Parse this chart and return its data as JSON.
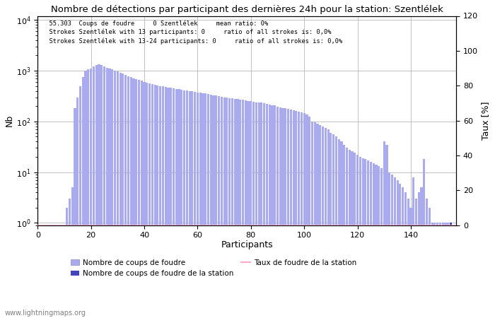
{
  "title": "Nombre de détections par participant des dernières 24h pour la station: Szentlélek",
  "xlabel": "Participants",
  "ylabel_left": "Nb",
  "ylabel_right": "Taux [%]",
  "annotation_lines": [
    "  55.303  Coups de foudre     0 Szentlélek     mean ratio: 0%",
    "  Strokes Szentlélek with 13 participants: 0     ratio of all strokes is: 0,0%",
    "  Strokes Szentlélek with 13-24 participants: 0     ratio of all strokes is: 0,0%"
  ],
  "bar_color": "#aaaaee",
  "bar_color_station": "#4444bb",
  "line_color": "#ffaacc",
  "legend_entries": [
    "Nombre de coups de foudre",
    "Nombre de coups de foudre de la station",
    "Taux de foudre de la station"
  ],
  "watermark": "www.lightningmaps.org",
  "ylim_right": [
    0,
    120
  ],
  "xlim": [
    0,
    157
  ],
  "xticks": [
    0,
    20,
    40,
    60,
    80,
    100,
    120,
    140
  ],
  "yticks_right": [
    0,
    20,
    40,
    60,
    80,
    100,
    120
  ],
  "values": [
    0,
    0,
    0,
    0,
    0,
    0,
    0,
    0,
    0,
    0,
    2,
    3,
    5,
    180,
    300,
    500,
    750,
    1000,
    1050,
    1100,
    1200,
    1300,
    1350,
    1280,
    1200,
    1150,
    1100,
    1050,
    1000,
    980,
    920,
    870,
    820,
    780,
    740,
    700,
    680,
    650,
    630,
    600,
    580,
    560,
    540,
    520,
    510,
    500,
    490,
    480,
    470,
    460,
    450,
    440,
    430,
    420,
    410,
    405,
    400,
    395,
    385,
    375,
    370,
    360,
    355,
    345,
    340,
    330,
    325,
    315,
    310,
    300,
    295,
    290,
    285,
    280,
    275,
    270,
    265,
    260,
    255,
    250,
    245,
    240,
    240,
    235,
    230,
    220,
    215,
    210,
    205,
    195,
    190,
    185,
    180,
    175,
    170,
    165,
    160,
    155,
    150,
    145,
    135,
    125,
    100,
    95,
    90,
    85,
    80,
    75,
    70,
    60,
    55,
    50,
    45,
    40,
    35,
    30,
    28,
    26,
    24,
    22,
    20,
    19,
    18,
    17,
    16,
    15,
    14,
    13,
    12,
    40,
    35,
    10,
    9,
    8,
    7,
    6,
    5,
    4,
    3,
    2,
    8,
    3,
    4,
    5,
    18,
    3,
    2,
    1,
    1,
    1,
    1,
    1,
    1,
    1,
    1
  ]
}
